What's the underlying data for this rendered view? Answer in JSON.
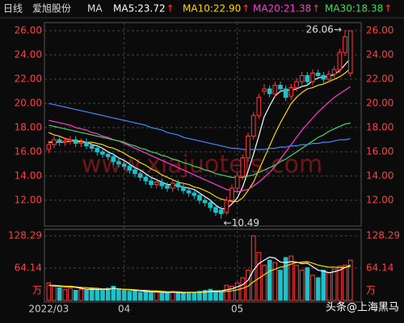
{
  "header": {
    "period": "日线",
    "stock": "爱旭股份",
    "ma_label": "MA",
    "items": [
      {
        "text": "MA5:23.72",
        "arrow": "↑",
        "color": "#ffffff"
      },
      {
        "text": "MA10:22.90",
        "arrow": "↑",
        "color": "#ffd700"
      },
      {
        "text": "MA20:21.38",
        "arrow": "↑",
        "color": "#ff3bd1"
      },
      {
        "text": "MA30:18.38",
        "arrow": "↑",
        "color": "#3ddc5a"
      }
    ]
  },
  "watermark": "www.xiajuotejs.com",
  "credit": "头条@上海黑马",
  "chart_data": [
    {
      "type": "candlestick",
      "categories": [
        "2022/03",
        null,
        null,
        null,
        null,
        null,
        null,
        null,
        null,
        null,
        null,
        null,
        null,
        null,
        "04",
        null,
        null,
        null,
        null,
        null,
        null,
        null,
        null,
        null,
        null,
        null,
        null,
        null,
        null,
        null,
        null,
        null,
        null,
        null,
        null,
        "05",
        null,
        null,
        null,
        null,
        null,
        null,
        null,
        null,
        null,
        null,
        null,
        null,
        null,
        null,
        null,
        null,
        null,
        null,
        null,
        null,
        null
      ],
      "open": [
        16.2,
        16.6,
        17.0,
        16.8,
        16.9,
        17.0,
        16.7,
        16.8,
        16.5,
        16.3,
        16.0,
        15.8,
        15.6,
        15.2,
        15.0,
        14.8,
        14.5,
        14.2,
        13.9,
        13.6,
        13.3,
        13.5,
        13.2,
        13.0,
        13.4,
        13.1,
        12.8,
        12.6,
        12.4,
        12.0,
        11.8,
        11.4,
        11.2,
        11.0,
        12.0,
        13.0,
        14.0,
        15.5,
        17.3,
        19.0,
        21.0,
        21.2,
        20.8,
        21.5,
        21.2,
        20.6,
        21.3,
        21.8,
        22.3,
        21.8,
        22.5,
        22.3,
        22.0,
        22.4,
        22.8,
        24.2,
        22.5
      ],
      "high": [
        16.9,
        17.3,
        17.3,
        17.2,
        17.3,
        17.3,
        17.1,
        17.1,
        16.8,
        16.6,
        16.3,
        16.1,
        15.9,
        15.5,
        15.3,
        15.1,
        14.8,
        14.5,
        14.2,
        13.9,
        13.8,
        13.8,
        13.5,
        13.7,
        13.7,
        13.4,
        13.1,
        12.9,
        12.7,
        12.3,
        12.1,
        11.7,
        11.5,
        12.3,
        13.3,
        14.3,
        15.8,
        17.6,
        19.3,
        20.8,
        21.6,
        21.5,
        21.8,
        21.8,
        21.5,
        21.6,
        22.1,
        22.6,
        22.6,
        22.8,
        22.8,
        22.6,
        22.7,
        23.1,
        24.5,
        26.06,
        26.0
      ],
      "low": [
        15.9,
        16.3,
        16.5,
        16.5,
        16.6,
        16.4,
        16.4,
        16.2,
        16.0,
        15.7,
        15.5,
        15.3,
        14.9,
        14.7,
        14.5,
        14.2,
        13.9,
        13.6,
        13.3,
        13.0,
        13.0,
        12.9,
        12.7,
        12.7,
        12.8,
        12.5,
        12.3,
        12.1,
        11.7,
        11.5,
        11.1,
        10.7,
        10.49,
        10.8,
        11.7,
        12.7,
        13.7,
        15.2,
        17.0,
        18.7,
        20.7,
        20.5,
        20.5,
        20.9,
        20.2,
        20.3,
        21.0,
        21.5,
        21.5,
        21.5,
        22.0,
        21.7,
        21.7,
        22.1,
        22.5,
        23.9,
        22.2
      ],
      "close": [
        16.6,
        17.0,
        16.8,
        16.9,
        17.0,
        16.7,
        16.8,
        16.5,
        16.3,
        16.0,
        15.8,
        15.6,
        15.2,
        15.0,
        14.8,
        14.5,
        14.2,
        13.9,
        13.6,
        13.3,
        13.5,
        13.2,
        13.0,
        13.4,
        13.1,
        12.8,
        12.6,
        12.4,
        12.0,
        11.8,
        11.4,
        11.0,
        10.9,
        12.0,
        13.0,
        14.0,
        15.5,
        17.3,
        19.0,
        20.5,
        21.2,
        20.8,
        21.5,
        21.2,
        20.5,
        21.3,
        21.8,
        22.3,
        21.8,
        22.5,
        22.3,
        22.0,
        22.4,
        22.8,
        24.2,
        25.5,
        26.0
      ],
      "up_color": "#ff3b3b",
      "down_color": "#1fc1c9",
      "lines": [
        {
          "color": "#ffffff",
          "values": [
            16.8,
            16.8,
            16.8,
            16.8,
            16.9,
            16.9,
            16.8,
            16.8,
            16.6,
            16.5,
            16.3,
            16.0,
            15.8,
            15.5,
            15.3,
            15.0,
            14.7,
            14.5,
            14.2,
            13.9,
            13.7,
            13.5,
            13.3,
            13.3,
            13.2,
            13.1,
            13.0,
            12.9,
            12.6,
            12.3,
            12.0,
            11.6,
            11.3,
            11.3,
            11.7,
            12.2,
            13.1,
            14.4,
            15.8,
            17.3,
            18.9,
            19.8,
            20.6,
            21.0,
            21.1,
            21.1,
            21.2,
            21.4,
            21.5,
            21.9,
            22.1,
            22.2,
            22.2,
            22.4,
            22.7,
            23.2,
            23.72
          ]
        },
        {
          "color": "#ffd700",
          "values": [
            17.6,
            17.4,
            17.3,
            17.1,
            17.0,
            16.9,
            16.9,
            16.8,
            16.8,
            16.7,
            16.6,
            16.4,
            16.3,
            16.1,
            15.9,
            15.6,
            15.4,
            15.1,
            14.9,
            14.6,
            14.4,
            14.1,
            13.9,
            13.7,
            13.5,
            13.4,
            13.3,
            13.1,
            13.0,
            12.8,
            12.6,
            12.3,
            12.1,
            12.0,
            11.9,
            11.9,
            12.2,
            12.8,
            13.5,
            14.5,
            15.5,
            16.5,
            17.5,
            18.4,
            19.2,
            20.0,
            20.5,
            20.9,
            21.2,
            21.3,
            21.5,
            21.6,
            21.8,
            22.0,
            22.2,
            22.5,
            22.9
          ]
        },
        {
          "color": "#ff3bd1",
          "values": [
            18.6,
            18.5,
            18.4,
            18.3,
            18.2,
            18.0,
            17.9,
            17.8,
            17.6,
            17.5,
            17.3,
            17.2,
            17.0,
            16.9,
            16.7,
            16.5,
            16.3,
            16.1,
            15.9,
            15.7,
            15.5,
            15.3,
            15.1,
            14.9,
            14.7,
            14.5,
            14.3,
            14.1,
            13.9,
            13.7,
            13.5,
            13.3,
            13.1,
            12.9,
            12.8,
            12.7,
            12.8,
            12.9,
            13.2,
            13.5,
            13.9,
            14.3,
            14.8,
            15.4,
            16.0,
            16.6,
            17.2,
            17.8,
            18.3,
            18.8,
            19.3,
            19.7,
            20.1,
            20.5,
            20.8,
            21.1,
            21.38
          ]
        },
        {
          "color": "#3ddc5a",
          "values": [
            18.2,
            18.1,
            18.0,
            17.9,
            17.8,
            17.7,
            17.6,
            17.5,
            17.4,
            17.3,
            17.2,
            17.1,
            17.0,
            16.9,
            16.8,
            16.6,
            16.5,
            16.3,
            16.2,
            16.0,
            15.9,
            15.7,
            15.6,
            15.4,
            15.3,
            15.1,
            15.0,
            14.8,
            14.7,
            14.5,
            14.4,
            14.2,
            14.1,
            14.0,
            13.9,
            13.9,
            13.9,
            14.0,
            14.1,
            14.3,
            14.5,
            14.7,
            14.9,
            15.2,
            15.4,
            15.7,
            16.0,
            16.3,
            16.6,
            16.9,
            17.2,
            17.4,
            17.7,
            17.9,
            18.1,
            18.3,
            18.38
          ]
        },
        {
          "color": "#3d8cff",
          "values": [
            20.0,
            19.9,
            19.8,
            19.7,
            19.6,
            19.5,
            19.4,
            19.3,
            19.2,
            19.1,
            19.0,
            18.9,
            18.8,
            18.7,
            18.6,
            18.5,
            18.4,
            18.3,
            18.2,
            18.0,
            17.9,
            17.8,
            17.6,
            17.5,
            17.4,
            17.2,
            17.1,
            17.0,
            16.9,
            16.8,
            16.7,
            16.6,
            16.5,
            16.4,
            16.3,
            16.3,
            16.2,
            16.2,
            16.2,
            16.2,
            16.2,
            16.3,
            16.3,
            16.4,
            16.4,
            16.5,
            16.5,
            16.6,
            16.6,
            16.7,
            16.7,
            16.8,
            16.8,
            16.9,
            17.0,
            17.0,
            17.1
          ]
        }
      ],
      "max_label": "26.06→",
      "min_label": "←10.49",
      "ylim": [
        9.87,
        26.67
      ],
      "yticks": [
        {
          "value": 12,
          "label": "12.00"
        },
        {
          "value": 14,
          "label": "14.00"
        },
        {
          "value": 16,
          "label": "16.00"
        },
        {
          "value": 18,
          "label": "18.00"
        },
        {
          "value": 20,
          "label": "20.00"
        },
        {
          "value": 22,
          "label": "22.00"
        },
        {
          "value": 24,
          "label": "24.00"
        },
        {
          "value": 26,
          "label": "26.00"
        }
      ],
      "grid": true
    },
    {
      "type": "bar",
      "unit": "万",
      "values": [
        35,
        28,
        25,
        22,
        24,
        20,
        22,
        20,
        25,
        22,
        20,
        24,
        28,
        22,
        20,
        18,
        20,
        16,
        18,
        15,
        16,
        14,
        16,
        18,
        15,
        14,
        16,
        15,
        18,
        20,
        22,
        18,
        16,
        30,
        28,
        35,
        45,
        60,
        128.29,
        95,
        70,
        80,
        75,
        60,
        85,
        88,
        70,
        60,
        65,
        50,
        45,
        60,
        55,
        62,
        68,
        70,
        80
      ],
      "lines": [
        {
          "color": "#ffffff",
          "values": [
            30,
            29,
            28,
            27,
            27,
            26,
            24,
            22,
            22,
            22,
            22,
            22,
            24,
            23,
            22,
            21,
            20,
            19,
            18,
            17,
            17,
            16,
            16,
            16,
            16,
            15,
            16,
            16,
            16,
            17,
            18,
            19,
            19,
            21,
            23,
            27,
            31,
            40,
            60,
            73,
            80,
            86,
            84,
            76,
            75,
            77,
            76,
            73,
            74,
            67,
            60,
            58,
            55,
            57,
            60,
            65,
            70
          ]
        },
        {
          "color": "#ffd700",
          "values": [
            30,
            30,
            29,
            28,
            28,
            27,
            26,
            25,
            24,
            24,
            23,
            23,
            23,
            23,
            22,
            22,
            21,
            20,
            20,
            19,
            19,
            18,
            17,
            17,
            17,
            16,
            16,
            16,
            16,
            16,
            17,
            17,
            17,
            18,
            19,
            21,
            24,
            28,
            37,
            44,
            51,
            58,
            62,
            66,
            68,
            72,
            75,
            76,
            77,
            74,
            70,
            68,
            66,
            66,
            65,
            66,
            67
          ]
        }
      ],
      "ylim": [
        0,
        128.29
      ],
      "yticks": [
        64.14,
        128.29
      ],
      "grid": true
    }
  ]
}
